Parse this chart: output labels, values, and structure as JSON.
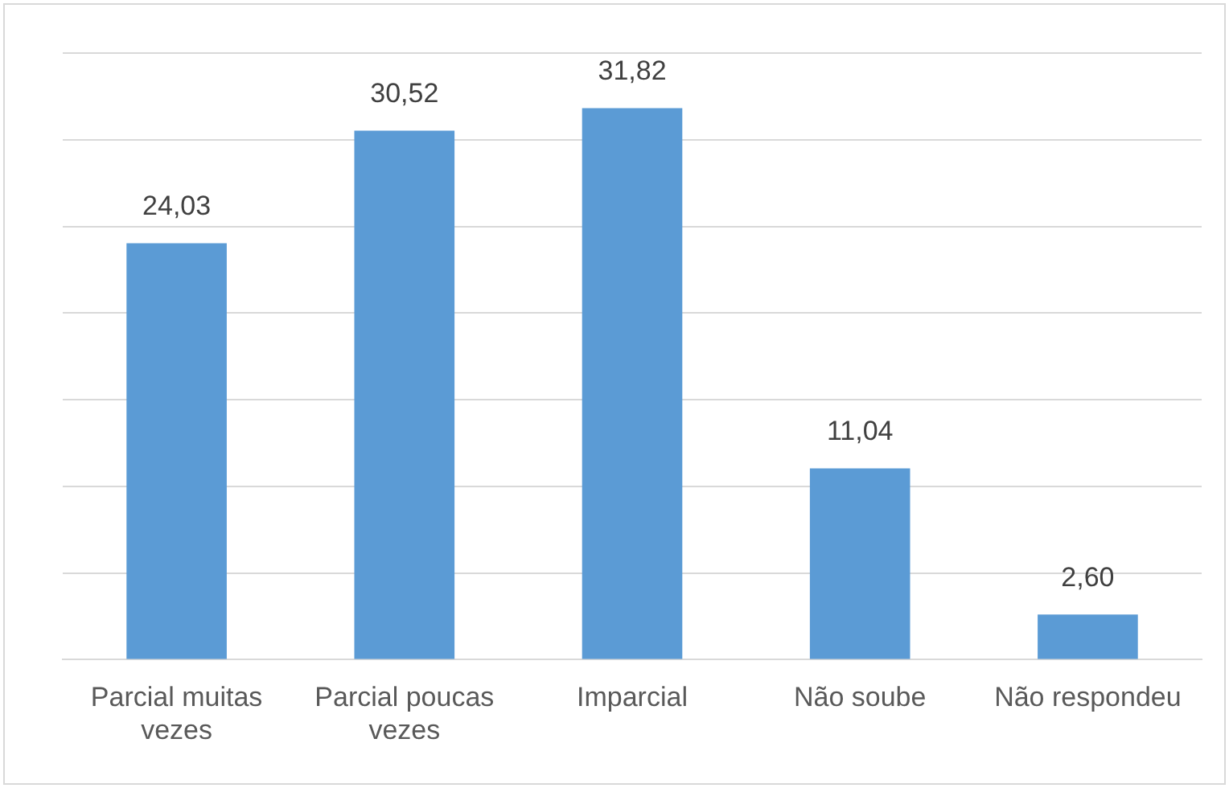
{
  "chart_data": {
    "type": "bar",
    "categories": [
      "Parcial muitas vezes",
      "Parcial poucas vezes",
      "Imparcial",
      "Não soube",
      "Não respondeu"
    ],
    "values": [
      24.03,
      30.52,
      31.82,
      11.04,
      2.6
    ],
    "value_labels": [
      "24,03",
      "30,52",
      "31,82",
      "11,04",
      "2,60"
    ],
    "color": "#5b9bd5",
    "ylim": [
      0,
      35
    ],
    "yticks": [
      0,
      {
        "value": 5,
        "label": null
      },
      {
        "value": 10,
        "label": null
      },
      {
        "value": 15,
        "label": null
      },
      {
        "value": 20,
        "label": null
      },
      {
        "value": 25,
        "label": null
      },
      {
        "value": 30,
        "label": null
      },
      {
        "value": 35,
        "label": null
      }
    ],
    "grid": "y",
    "tick_labels": "x",
    "legend": false
  }
}
